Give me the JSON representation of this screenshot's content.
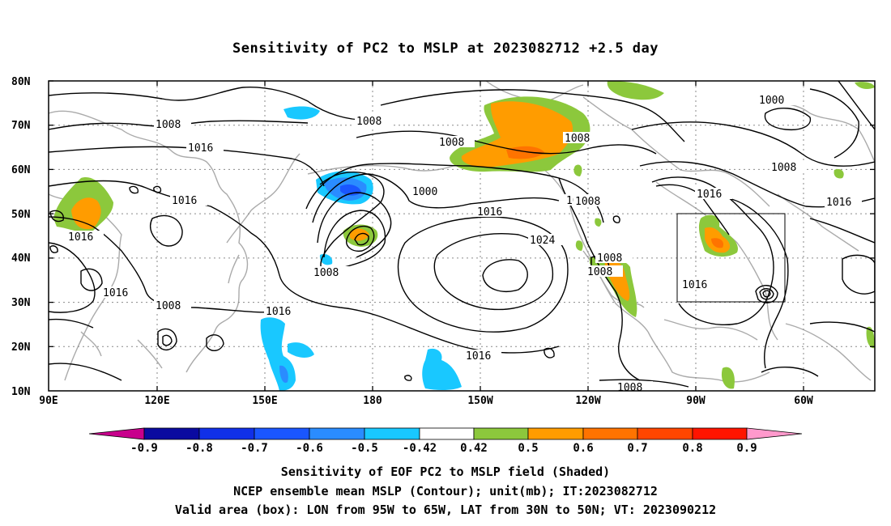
{
  "title": "Sensitivity of PC2 to MSLP at 2023082712 +2.5 day",
  "captions": [
    "Sensitivity of EOF PC2 to MSLP field (Shaded)",
    "NCEP ensemble mean MSLP (Contour); unit(mb); IT:2023082712",
    "Valid area (box): LON from 95W to 65W, LAT from 30N to 50N; VT: 2023090212"
  ],
  "map": {
    "lat_labels": [
      "80N",
      "70N",
      "60N",
      "50N",
      "40N",
      "30N",
      "20N",
      "10N"
    ],
    "lon_labels": [
      "90E",
      "120E",
      "150E",
      "180",
      "150W",
      "120W",
      "90W",
      "60W"
    ],
    "valid_box": {
      "lon_from": "95W",
      "lon_to": "65W",
      "lat_from": "30N",
      "lat_to": "50N"
    },
    "contour_labels": [
      "1008",
      "1008",
      "1008",
      "1016",
      "1016",
      "1016",
      "1000",
      "1016",
      "1024",
      "1008",
      "1008",
      "1008",
      "1016",
      "1008",
      "1008",
      "1016",
      "1016",
      "1008",
      "1016",
      "1000",
      "1016",
      "1008",
      "1016",
      "1008",
      "1008"
    ]
  },
  "colorbar": {
    "labels": [
      "-0.9",
      "-0.8",
      "-0.7",
      "-0.6",
      "-0.5",
      "-0.42",
      "0.42",
      "0.5",
      "0.6",
      "0.7",
      "0.8",
      "0.9"
    ],
    "colors": {
      "below": "#c8008c",
      "n09": "#0a0aa0",
      "n08": "#1030e8",
      "n07": "#1a56ff",
      "n06": "#2a8cff",
      "n05": "#19c8ff",
      "neutral": "#ffffff",
      "p042": "#8cc83c",
      "p05": "#ff9c00",
      "p06": "#ff7300",
      "p07": "#ff4600",
      "p08": "#ff1400",
      "above": "#ff99cc"
    }
  }
}
